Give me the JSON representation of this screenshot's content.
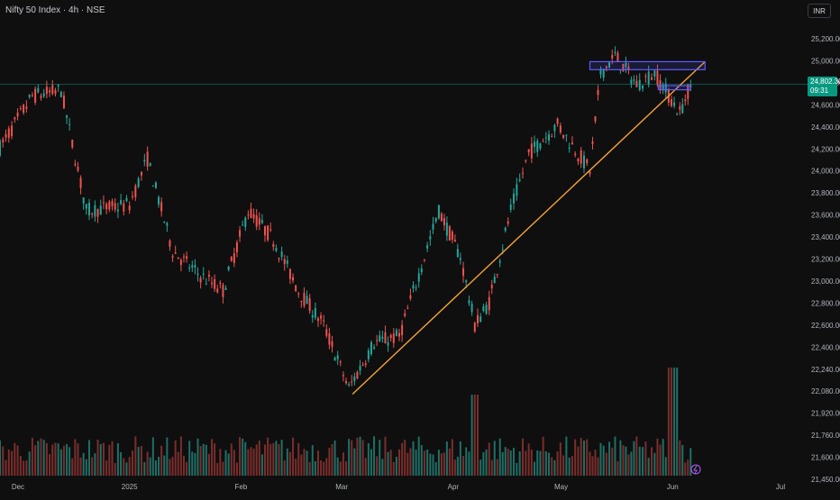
{
  "header": {
    "title": "Nifty 50 Index · 4h · NSE",
    "currency": "INR"
  },
  "last_price": {
    "value": "24,802.30",
    "countdown": "09:31"
  },
  "colors": {
    "up": "#26a69a",
    "down": "#ef5350",
    "trendline": "#f7a23a",
    "zone": "#5c5cff",
    "price_line": "#089981",
    "volume_up": "#1f6f66",
    "volume_down": "#7a2e2c"
  },
  "chart_data": {
    "type": "candlestick",
    "symbol": "Nifty 50 Index",
    "interval": "4h",
    "exchange": "NSE",
    "x_tick_labels": [
      "Dec",
      "2025",
      "Feb",
      "Mar",
      "Apr",
      "May",
      "Jun",
      "Jul"
    ],
    "y_tick_labels": [
      "25,200.00",
      "25,000.00",
      "24,800.00",
      "24,600.00",
      "24,400.00",
      "24,200.00",
      "24,000.00",
      "23,800.00",
      "23,600.00",
      "23,400.00",
      "23,200.00",
      "23,000.00",
      "22,800.00",
      "22,600.00",
      "22,400.00",
      "22,240.00",
      "22,080.00",
      "21,920.00",
      "21,760.00",
      "21,600.00",
      "21,450.00"
    ],
    "y_axis_labels_values": [
      25200,
      25000,
      24800,
      24600,
      24400,
      24200,
      24000,
      23800,
      23600,
      23400,
      23200,
      23000,
      22800,
      22600,
      22400,
      22240,
      22080,
      21920,
      21760,
      21600,
      21450
    ],
    "path_keypoints": [
      {
        "date": "2024-11-26",
        "close": 24250
      },
      {
        "date": "2024-12-05",
        "close": 24700
      },
      {
        "date": "2024-12-13",
        "close": 24750
      },
      {
        "date": "2024-12-20",
        "close": 23700
      },
      {
        "date": "2025-01-01",
        "close": 23750
      },
      {
        "date": "2025-01-06",
        "close": 24150
      },
      {
        "date": "2025-01-13",
        "close": 23350
      },
      {
        "date": "2025-01-20",
        "close": 23150
      },
      {
        "date": "2025-01-27",
        "close": 23000
      },
      {
        "date": "2025-02-03",
        "close": 23700
      },
      {
        "date": "2025-02-10",
        "close": 23450
      },
      {
        "date": "2025-02-17",
        "close": 23000
      },
      {
        "date": "2025-02-24",
        "close": 22700
      },
      {
        "date": "2025-03-03",
        "close": 22150
      },
      {
        "date": "2025-03-10",
        "close": 22550
      },
      {
        "date": "2025-03-17",
        "close": 22600
      },
      {
        "date": "2025-03-24",
        "close": 23300
      },
      {
        "date": "2025-03-28",
        "close": 23700
      },
      {
        "date": "2025-04-03",
        "close": 23300
      },
      {
        "date": "2025-04-07",
        "close": 22700
      },
      {
        "date": "2025-04-11",
        "close": 22900
      },
      {
        "date": "2025-04-17",
        "close": 23700
      },
      {
        "date": "2025-04-22",
        "close": 24200
      },
      {
        "date": "2025-04-30",
        "close": 24450
      },
      {
        "date": "2025-05-09",
        "close": 24050
      },
      {
        "date": "2025-05-12",
        "close": 24900
      },
      {
        "date": "2025-05-16",
        "close": 25050
      },
      {
        "date": "2025-05-22",
        "close": 24800
      },
      {
        "date": "2025-05-27",
        "close": 24900
      },
      {
        "date": "2025-06-03",
        "close": 24550
      },
      {
        "date": "2025-06-06",
        "close": 24802.3
      }
    ],
    "trendline": {
      "from": {
        "date": "2025-03-04",
        "price": 22100
      },
      "to": {
        "date": "2025-06-10",
        "price": 25000
      }
    },
    "zones": [
      {
        "from": "2025-05-09",
        "to": "2025-06-10",
        "top": 25000,
        "bottom": 24930
      },
      {
        "from": "2025-05-28",
        "to": "2025-06-06",
        "top": 24790,
        "bottom": 24755
      }
    ],
    "last_price": 24802.3,
    "x_range": [
      "2024-11-26",
      "2025-07-05"
    ],
    "grid": false
  }
}
